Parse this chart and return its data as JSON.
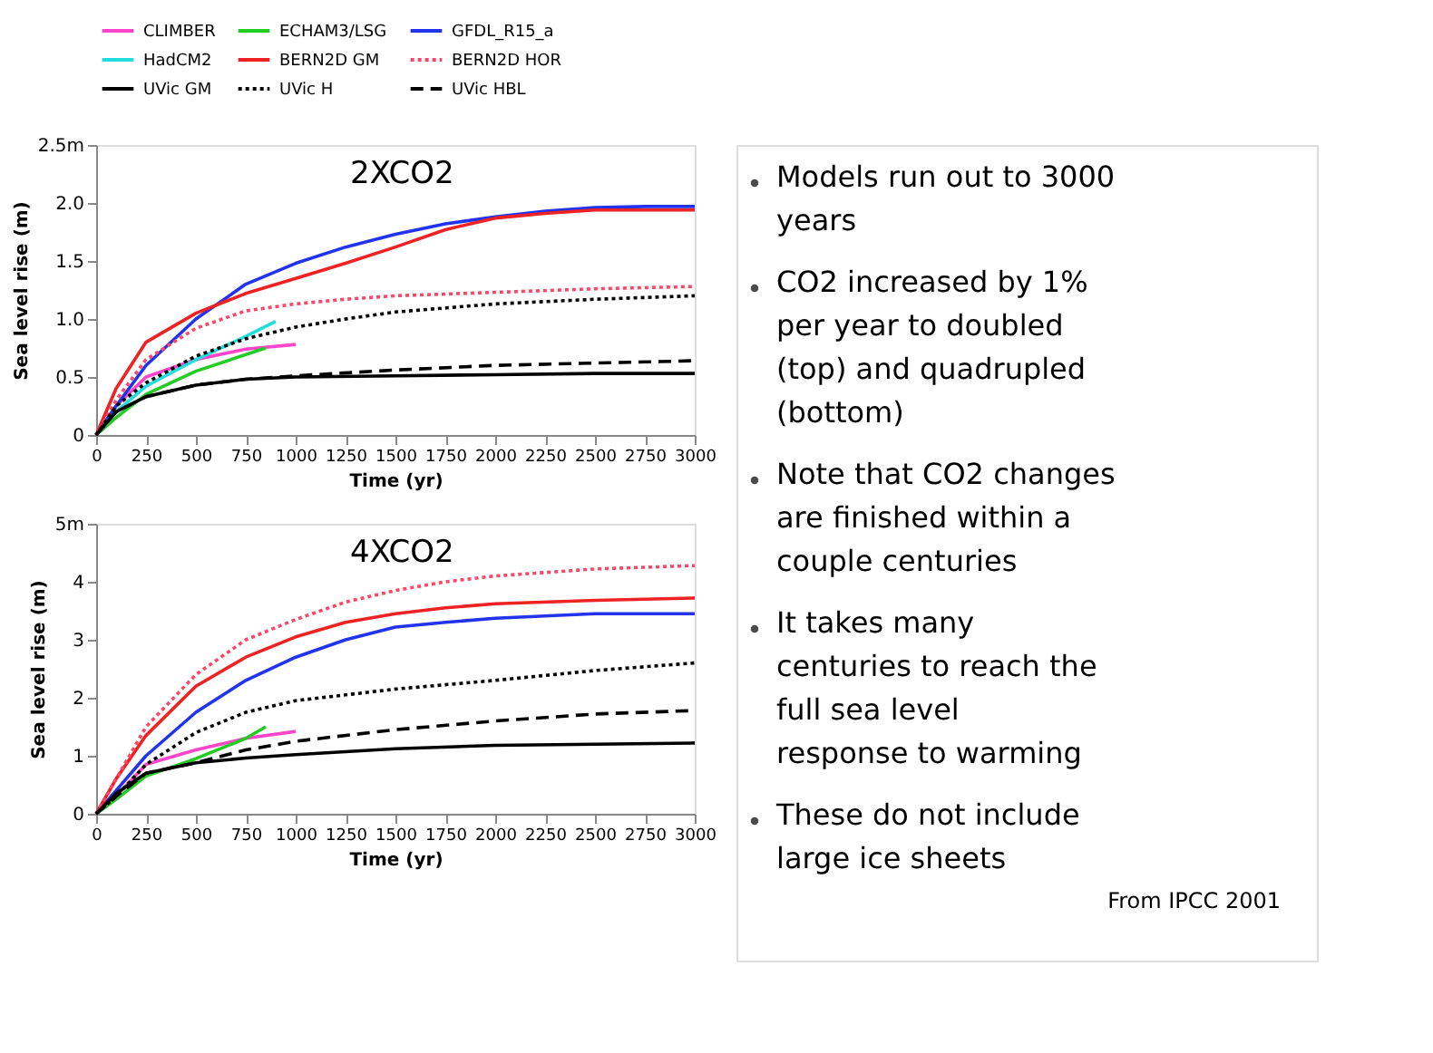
{
  "chart_data": [
    {
      "type": "line",
      "xlabel": "Time (yr)",
      "ylabel": "Sea level rise (m)",
      "annotations": [
        "2XCO2"
      ],
      "legend": "top",
      "grid": false,
      "xlim": [
        0,
        3000
      ],
      "xticks": [
        0,
        250,
        500,
        750,
        1000,
        1250,
        1500,
        1750,
        2000,
        2250,
        2500,
        2750,
        3000
      ],
      "ylim": [
        0,
        2.5
      ],
      "yticks": [
        0,
        0.5,
        {
          "value": 1,
          "label": "1.0"
        },
        1.5,
        {
          "value": 2,
          "label": "2.0"
        },
        {
          "value": 2.5,
          "label": "2.5m"
        }
      ],
      "series": [
        {
          "name": "CLIMBER",
          "color": "#ff44cc",
          "line_style": "solid",
          "x": [
            0,
            100,
            250,
            500,
            750,
            1000
          ],
          "values": [
            0,
            0.25,
            0.5,
            0.65,
            0.74,
            0.78
          ]
        },
        {
          "name": "ECHAM3/LSG",
          "color": "#22cc22",
          "line_style": "solid",
          "x": [
            0,
            100,
            250,
            500,
            850
          ],
          "values": [
            0,
            0.15,
            0.35,
            0.55,
            0.75
          ]
        },
        {
          "name": "GFDL_R15_a",
          "color": "#2233ee",
          "line_style": "solid",
          "x": [
            0,
            100,
            250,
            500,
            750,
            1000,
            1250,
            1500,
            1750,
            2000,
            2250,
            2500,
            2750,
            3000
          ],
          "values": [
            0,
            0.25,
            0.6,
            1.0,
            1.3,
            1.48,
            1.62,
            1.73,
            1.82,
            1.88,
            1.93,
            1.96,
            1.97,
            1.97
          ]
        },
        {
          "name": "HadCM2",
          "color": "#22dddd",
          "line_style": "solid",
          "x": [
            0,
            100,
            250,
            500,
            750,
            900
          ],
          "values": [
            0,
            0.2,
            0.42,
            0.65,
            0.85,
            0.98
          ]
        },
        {
          "name": "BERN2D GM",
          "color": "#ee2222",
          "line_style": "solid",
          "x": [
            0,
            100,
            250,
            500,
            750,
            1000,
            1250,
            1500,
            1750,
            2000,
            2250,
            2500,
            3000
          ],
          "values": [
            0,
            0.4,
            0.8,
            1.05,
            1.22,
            1.35,
            1.48,
            1.62,
            1.77,
            1.87,
            1.91,
            1.94,
            1.94
          ]
        },
        {
          "name": "BERN2D HOR",
          "color": "#ff4466",
          "line_style": "dotted",
          "x": [
            0,
            100,
            250,
            500,
            750,
            1000,
            1250,
            1500,
            2000,
            2500,
            3000
          ],
          "values": [
            0,
            0.3,
            0.65,
            0.92,
            1.07,
            1.13,
            1.17,
            1.2,
            1.23,
            1.26,
            1.28
          ]
        },
        {
          "name": "UVic GM",
          "color": "#000000",
          "line_style": "solid",
          "x": [
            0,
            100,
            250,
            500,
            750,
            1000,
            1500,
            2000,
            2500,
            3000
          ],
          "values": [
            0,
            0.2,
            0.33,
            0.43,
            0.48,
            0.5,
            0.51,
            0.52,
            0.53,
            0.53
          ]
        },
        {
          "name": "UVic H",
          "color": "#000000",
          "line_style": "dotted",
          "x": [
            0,
            100,
            250,
            500,
            750,
            1000,
            1250,
            1500,
            2000,
            2500,
            3000
          ],
          "values": [
            0,
            0.25,
            0.45,
            0.68,
            0.83,
            0.93,
            1.0,
            1.06,
            1.13,
            1.17,
            1.2
          ]
        },
        {
          "name": "UVic HBL",
          "color": "#000000",
          "line_style": "dashed",
          "x": [
            0,
            100,
            250,
            500,
            750,
            1000,
            1500,
            2000,
            2500,
            3000
          ],
          "values": [
            0,
            0.2,
            0.33,
            0.43,
            0.48,
            0.51,
            0.56,
            0.6,
            0.62,
            0.64
          ]
        }
      ]
    },
    {
      "type": "line",
      "xlabel": "Time (yr)",
      "ylabel": "Sea level rise (m)",
      "annotations": [
        "4XCO2"
      ],
      "legend": "top",
      "grid": false,
      "xlim": [
        0,
        3000
      ],
      "xticks": [
        0,
        250,
        500,
        750,
        1000,
        1250,
        1500,
        1750,
        2000,
        2250,
        2500,
        2750,
        3000
      ],
      "ylim": [
        0,
        5
      ],
      "yticks": [
        0,
        1,
        2,
        3,
        4,
        {
          "value": 5,
          "label": "5m"
        }
      ],
      "series": [
        {
          "name": "CLIMBER",
          "color": "#ff44cc",
          "line_style": "solid",
          "x": [
            0,
            100,
            250,
            500,
            750,
            1000
          ],
          "values": [
            0,
            0.3,
            0.85,
            1.1,
            1.3,
            1.42
          ]
        },
        {
          "name": "ECHAM3/LSG",
          "color": "#22cc22",
          "line_style": "solid",
          "x": [
            0,
            100,
            250,
            500,
            750,
            850
          ],
          "values": [
            0,
            0.25,
            0.65,
            0.95,
            1.3,
            1.5
          ]
        },
        {
          "name": "GFDL_R15_a",
          "color": "#2233ee",
          "line_style": "solid",
          "x": [
            0,
            100,
            250,
            500,
            750,
            1000,
            1250,
            1500,
            1750,
            2000,
            2500,
            3000
          ],
          "values": [
            0,
            0.4,
            1.0,
            1.75,
            2.3,
            2.7,
            3.0,
            3.22,
            3.3,
            3.37,
            3.45,
            3.45
          ]
        },
        {
          "name": "BERN2D GM",
          "color": "#ee2222",
          "line_style": "solid",
          "x": [
            0,
            100,
            250,
            500,
            750,
            1000,
            1250,
            1500,
            1750,
            2000,
            2500,
            3000
          ],
          "values": [
            0,
            0.6,
            1.35,
            2.2,
            2.7,
            3.05,
            3.3,
            3.45,
            3.55,
            3.62,
            3.68,
            3.72
          ]
        },
        {
          "name": "BERN2D HOR",
          "color": "#ff4466",
          "line_style": "dotted",
          "x": [
            0,
            100,
            250,
            500,
            750,
            1000,
            1250,
            1500,
            1750,
            2000,
            2500,
            3000
          ],
          "values": [
            0,
            0.6,
            1.5,
            2.4,
            3.0,
            3.35,
            3.65,
            3.85,
            4.0,
            4.1,
            4.22,
            4.28
          ]
        },
        {
          "name": "UVic GM",
          "color": "#000000",
          "line_style": "solid",
          "x": [
            0,
            100,
            250,
            500,
            750,
            1000,
            1500,
            2000,
            2500,
            3000
          ],
          "values": [
            0,
            0.35,
            0.7,
            0.88,
            0.96,
            1.02,
            1.12,
            1.18,
            1.2,
            1.22
          ]
        },
        {
          "name": "UVic H",
          "color": "#000000",
          "line_style": "dotted",
          "x": [
            0,
            100,
            250,
            500,
            750,
            1000,
            1250,
            1500,
            2000,
            2500,
            3000
          ],
          "values": [
            0,
            0.3,
            0.85,
            1.4,
            1.75,
            1.95,
            2.05,
            2.15,
            2.3,
            2.47,
            2.6
          ]
        },
        {
          "name": "UVic HBL",
          "color": "#000000",
          "line_style": "dashed",
          "x": [
            0,
            100,
            250,
            500,
            750,
            1000,
            1500,
            2000,
            2500,
            3000
          ],
          "values": [
            0,
            0.3,
            0.7,
            0.88,
            1.1,
            1.25,
            1.45,
            1.6,
            1.72,
            1.78
          ]
        }
      ]
    },
    {
      "type": "other",
      "annotations": [
        "Models run out to 3000 years",
        "CO2 increased by 1% per year to doubled (top) and quadrupled (bottom)",
        "Note that CO2 changes are finished within a couple centuries",
        "It takes many centuries to reach the full sea level response to warming",
        "These do not include large ice sheets",
        "From IPCC 2001"
      ]
    }
  ]
}
